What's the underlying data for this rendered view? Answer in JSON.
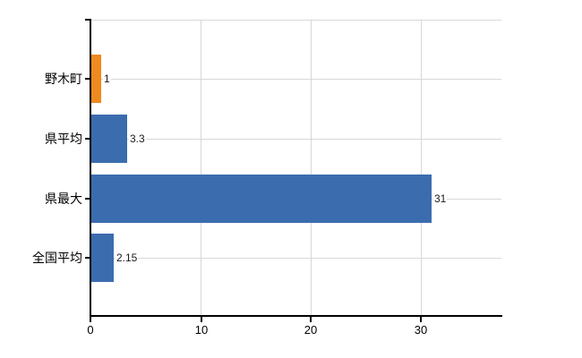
{
  "chart_data": {
    "type": "bar",
    "orientation": "horizontal",
    "title": "",
    "xlabel": "",
    "ylabel": "",
    "categories": [
      "野木町",
      "県平均",
      "県最大",
      "全国平均"
    ],
    "values": [
      1,
      3.3,
      31,
      2.15
    ],
    "value_labels": [
      "1",
      "3.3",
      "31",
      "2.15"
    ],
    "x_ticks": [
      "0",
      "10",
      "20",
      "30"
    ],
    "xlim": [
      0,
      37.3
    ],
    "grid": true,
    "legend": false,
    "bar_colors": [
      "#EE8A20",
      "#3B6CAE",
      "#3B6CAE",
      "#3B6CAE"
    ]
  },
  "colors": {
    "bar_orange": "#EE8A20",
    "bar_blue": "#3B6CAE",
    "gridline": "#D5D9D5",
    "axis": "#000000",
    "background": "#FFFFFF"
  }
}
